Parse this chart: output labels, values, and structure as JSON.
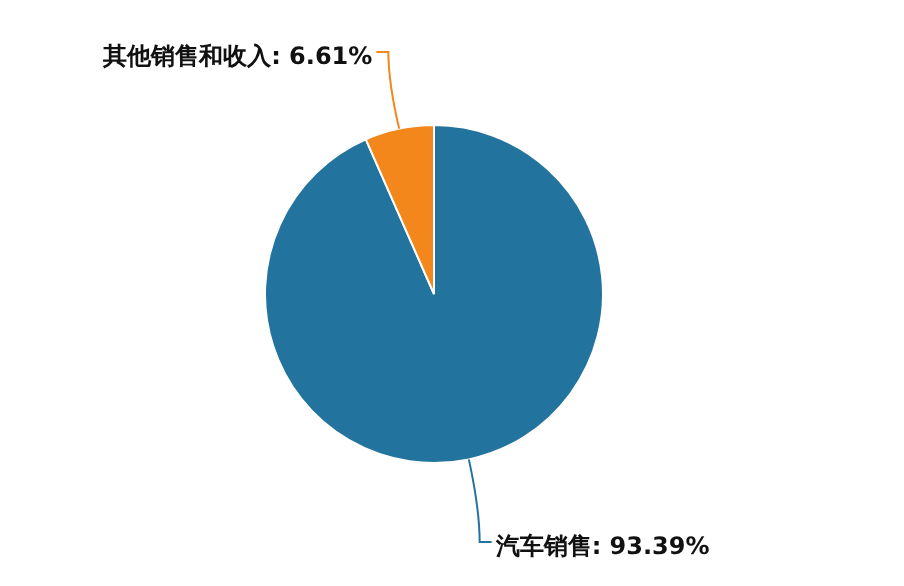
{
  "chart_data": {
    "type": "pie",
    "categories": [
      "汽车销售",
      "其他销售和收入"
    ],
    "values": [
      93.39,
      6.61
    ],
    "colors": [
      "#23739f",
      "#f3871c"
    ],
    "value_labels": [
      "93.39%",
      "6.61%"
    ]
  }
}
